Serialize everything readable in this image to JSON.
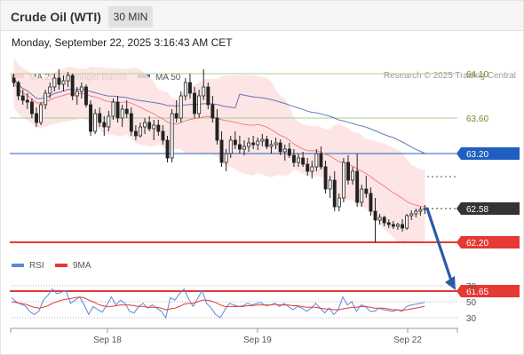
{
  "header": {
    "instrument": "Crude Oil (WTI)",
    "timeframe": "30 MIN"
  },
  "datetime": "Monday, September 22, 2025 3:16:43 AM CET",
  "copyright": "Research © 2025 Trading Central",
  "colors": {
    "ma20": "#f08080",
    "bollinger_fill": "#fde0e0",
    "ma50": "#3f5aa8",
    "level_green": "#a9d08e",
    "level_blue": "#1f5fbf",
    "level_red": "#e53935",
    "current": "#333333",
    "arrow": "#2b5aa8",
    "rsi": "#5b8ad8",
    "rsi_ma": "#e53935",
    "bull": "#ffffff",
    "bear": "#222222"
  },
  "chart_data": [
    {
      "type": "candlestick",
      "legend": [
        {
          "name": "MA 20 + Bollinger Bands",
          "color": "#f08080"
        },
        {
          "name": "MA 50",
          "color": "#3f5aa8"
        }
      ],
      "x_ticks": [
        "Sep 18",
        "Sep 19",
        "Sep 22"
      ],
      "levels": [
        {
          "value": 64.1,
          "label": "64.10",
          "style": "green"
        },
        {
          "value": 63.6,
          "label": "63.60",
          "style": "green"
        },
        {
          "value": 63.2,
          "label": "63.20",
          "style": "blue"
        },
        {
          "value": 62.58,
          "label": "62.58",
          "style": "current"
        },
        {
          "value": 62.2,
          "label": "62.20",
          "style": "red"
        },
        {
          "value": 61.65,
          "label": "61.65",
          "style": "red"
        }
      ],
      "projection": {
        "from": 62.58,
        "to": 61.65
      },
      "candles": [
        [
          64.05,
          64.1,
          63.95,
          64.0
        ],
        [
          64.0,
          64.02,
          63.8,
          63.85
        ],
        [
          63.85,
          63.92,
          63.75,
          63.8
        ],
        [
          63.8,
          63.88,
          63.7,
          63.78
        ],
        [
          63.78,
          63.82,
          63.6,
          63.65
        ],
        [
          63.65,
          63.72,
          63.5,
          63.55
        ],
        [
          63.55,
          63.78,
          63.52,
          63.75
        ],
        [
          63.75,
          63.92,
          63.7,
          63.88
        ],
        [
          63.88,
          64.0,
          63.82,
          63.95
        ],
        [
          63.95,
          64.1,
          63.9,
          64.05
        ],
        [
          64.05,
          64.15,
          63.92,
          63.98
        ],
        [
          63.98,
          64.08,
          63.9,
          64.02
        ],
        [
          64.02,
          64.12,
          63.95,
          64.08
        ],
        [
          64.08,
          64.1,
          63.8,
          63.85
        ],
        [
          63.85,
          63.95,
          63.75,
          63.9
        ],
        [
          63.9,
          64.0,
          63.82,
          63.95
        ],
        [
          63.95,
          63.98,
          63.72,
          63.75
        ],
        [
          63.75,
          63.8,
          63.4,
          63.45
        ],
        [
          63.45,
          63.7,
          63.42,
          63.65
        ],
        [
          63.65,
          63.72,
          63.5,
          63.55
        ],
        [
          63.55,
          63.62,
          63.4,
          63.5
        ],
        [
          63.5,
          63.68,
          63.45,
          63.62
        ],
        [
          63.62,
          63.82,
          63.58,
          63.78
        ],
        [
          63.78,
          63.85,
          63.55,
          63.6
        ],
        [
          63.6,
          63.75,
          63.5,
          63.7
        ],
        [
          63.7,
          63.8,
          63.6,
          63.65
        ],
        [
          63.65,
          63.72,
          63.4,
          63.45
        ],
        [
          63.45,
          63.52,
          63.35,
          63.4
        ],
        [
          63.4,
          63.55,
          63.38,
          63.5
        ],
        [
          63.5,
          63.6,
          63.42,
          63.55
        ],
        [
          63.55,
          63.62,
          63.45,
          63.48
        ],
        [
          63.48,
          63.58,
          63.35,
          63.52
        ],
        [
          63.52,
          63.58,
          63.4,
          63.45
        ],
        [
          63.45,
          63.52,
          63.3,
          63.35
        ],
        [
          63.35,
          63.4,
          63.1,
          63.15
        ],
        [
          63.15,
          63.7,
          63.1,
          63.65
        ],
        [
          63.65,
          63.8,
          63.55,
          63.6
        ],
        [
          63.6,
          63.9,
          63.55,
          63.85
        ],
        [
          63.85,
          64.05,
          63.8,
          64.0
        ],
        [
          64.0,
          64.1,
          63.82,
          63.88
        ],
        [
          63.88,
          63.95,
          63.6,
          63.65
        ],
        [
          63.65,
          63.92,
          63.6,
          63.85
        ],
        [
          63.85,
          64.15,
          63.8,
          63.95
        ],
        [
          63.95,
          64.0,
          63.7,
          63.75
        ],
        [
          63.75,
          63.85,
          63.55,
          63.6
        ],
        [
          63.6,
          63.7,
          63.3,
          63.35
        ],
        [
          63.35,
          63.45,
          63.05,
          63.1
        ],
        [
          63.1,
          63.25,
          63.0,
          63.2
        ],
        [
          63.2,
          63.4,
          63.15,
          63.35
        ],
        [
          63.35,
          63.45,
          63.25,
          63.3
        ],
        [
          63.3,
          63.4,
          63.2,
          63.25
        ],
        [
          63.25,
          63.35,
          63.18,
          63.28
        ],
        [
          63.28,
          63.38,
          63.22,
          63.32
        ],
        [
          63.32,
          63.4,
          63.25,
          63.3
        ],
        [
          63.3,
          63.38,
          63.24,
          63.34
        ],
        [
          63.34,
          63.42,
          63.28,
          63.36
        ],
        [
          63.36,
          63.4,
          63.25,
          63.28
        ],
        [
          63.28,
          63.35,
          63.2,
          63.3
        ],
        [
          63.3,
          63.38,
          63.25,
          63.32
        ],
        [
          63.32,
          63.36,
          63.18,
          63.22
        ],
        [
          63.22,
          63.3,
          63.12,
          63.25
        ],
        [
          63.25,
          63.32,
          63.15,
          63.18
        ],
        [
          63.18,
          63.25,
          63.05,
          63.1
        ],
        [
          63.1,
          63.2,
          63.05,
          63.15
        ],
        [
          63.15,
          63.22,
          63.05,
          63.08
        ],
        [
          63.08,
          63.15,
          62.95,
          63.0
        ],
        [
          63.0,
          63.12,
          62.92,
          63.05
        ],
        [
          63.05,
          63.25,
          63.0,
          63.2
        ],
        [
          63.2,
          63.28,
          63.02,
          63.05
        ],
        [
          63.05,
          63.12,
          62.75,
          62.8
        ],
        [
          62.8,
          62.95,
          62.7,
          62.9
        ],
        [
          62.9,
          63.0,
          62.55,
          62.6
        ],
        [
          62.6,
          62.75,
          62.55,
          62.7
        ],
        [
          62.7,
          63.15,
          62.65,
          63.1
        ],
        [
          63.1,
          63.18,
          62.85,
          62.9
        ],
        [
          62.9,
          63.05,
          62.85,
          63.0
        ],
        [
          63.0,
          63.2,
          62.6,
          62.65
        ],
        [
          62.65,
          62.85,
          62.6,
          62.8
        ],
        [
          62.8,
          62.95,
          62.7,
          62.75
        ],
        [
          62.75,
          62.82,
          62.5,
          62.55
        ],
        [
          62.55,
          62.7,
          62.2,
          62.45
        ],
        [
          62.45,
          62.52,
          62.4,
          62.48
        ],
        [
          62.48,
          62.5,
          62.38,
          62.42
        ],
        [
          62.42,
          62.46,
          62.36,
          62.4
        ],
        [
          62.4,
          62.44,
          62.35,
          62.38
        ],
        [
          62.38,
          62.42,
          62.34,
          62.4
        ],
        [
          62.4,
          62.46,
          62.32,
          62.36
        ],
        [
          62.36,
          62.52,
          62.34,
          62.5
        ],
        [
          62.5,
          62.56,
          62.45,
          62.52
        ],
        [
          62.52,
          62.58,
          62.48,
          62.55
        ],
        [
          62.55,
          62.6,
          62.5,
          62.57
        ],
        [
          62.57,
          62.62,
          62.52,
          62.58
        ]
      ]
    },
    {
      "type": "line",
      "legend": [
        {
          "name": "RSI",
          "color": "#5b8ad8"
        },
        {
          "name": "9MA",
          "color": "#e53935"
        }
      ],
      "y_ticks": [
        "70",
        "50",
        "30"
      ],
      "ylim": [
        25,
        75
      ],
      "rsi": [
        55,
        50,
        47,
        45,
        38,
        34,
        38,
        52,
        58,
        66,
        60,
        62,
        64,
        48,
        52,
        56,
        46,
        34,
        44,
        40,
        37,
        46,
        56,
        46,
        52,
        48,
        38,
        36,
        44,
        48,
        42,
        46,
        42,
        38,
        30,
        55,
        52,
        60,
        66,
        54,
        44,
        54,
        64,
        48,
        42,
        34,
        30,
        40,
        48,
        46,
        44,
        45,
        48,
        46,
        48,
        49,
        45,
        46,
        48,
        44,
        48,
        44,
        40,
        44,
        42,
        38,
        42,
        48,
        42,
        36,
        42,
        34,
        40,
        56,
        46,
        50,
        38,
        46,
        44,
        38,
        38,
        42,
        40,
        39,
        38,
        40,
        38,
        44,
        46,
        47,
        48,
        49
      ],
      "ma9": [
        50,
        49,
        48,
        47,
        45,
        43,
        42,
        43,
        45,
        48,
        50,
        52,
        53,
        54,
        55,
        56,
        55,
        52,
        50,
        47,
        45,
        44,
        44,
        45,
        46,
        46,
        46,
        45,
        44,
        44,
        43,
        43,
        43,
        42,
        40,
        41,
        42,
        44,
        47,
        48,
        48,
        50,
        52,
        52,
        51,
        49,
        46,
        44,
        44,
        44,
        44,
        44,
        45,
        45,
        46,
        46,
        46,
        46,
        47,
        46,
        46,
        46,
        45,
        45,
        44,
        43,
        43,
        43,
        42,
        41,
        41,
        40,
        40,
        41,
        42,
        43,
        43,
        44,
        44,
        43,
        42,
        42,
        42,
        41,
        40,
        40,
        39,
        40,
        41,
        42,
        43,
        44
      ]
    }
  ]
}
